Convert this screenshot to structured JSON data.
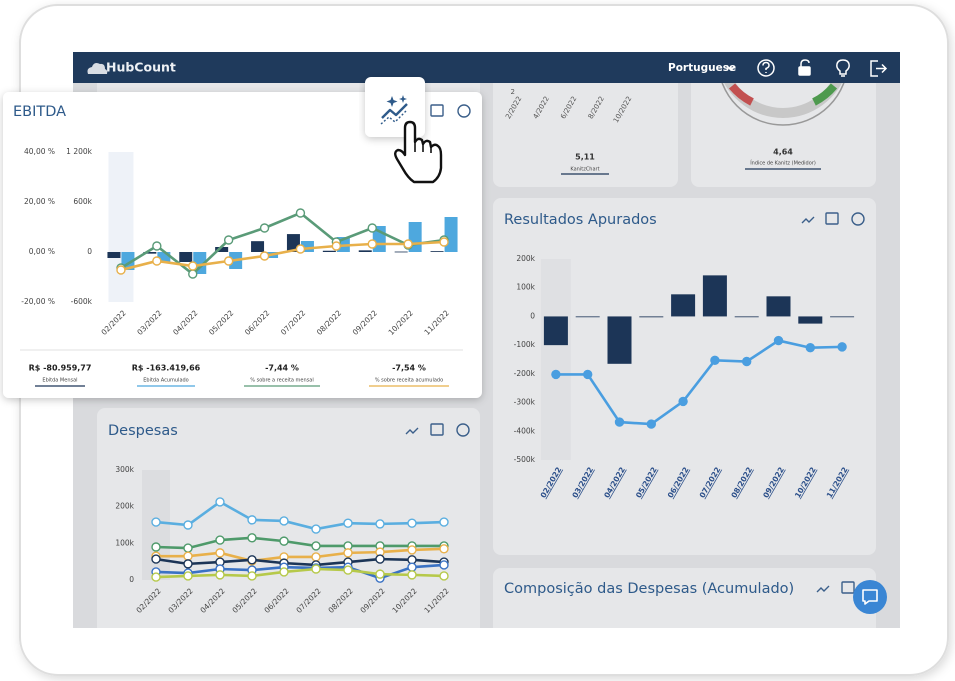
{
  "topbar": {
    "logo": "HubCount",
    "language": "Portuguese"
  },
  "kanitz_chart": {
    "y_label": "2",
    "x_labels": [
      "2/2022",
      "4/2022",
      "6/2022",
      "8/2022",
      "10/2022"
    ],
    "value": "5,11",
    "label": "KanitzChart"
  },
  "kanitz_gauge": {
    "value": "4,64",
    "label": "Índice de Kanitz (Medidor)"
  },
  "ebitda": {
    "type": "combo",
    "title": "EBITDA",
    "categories": [
      "02/2022",
      "03/2022",
      "04/2022",
      "05/2022",
      "06/2022",
      "07/2022",
      "08/2022",
      "09/2022",
      "10/2022",
      "11/2022"
    ],
    "series": [
      {
        "type": "bar",
        "axis": "y2",
        "color": "#1c3557",
        "values": [
          -72000,
          -20000,
          -120000,
          60000,
          130000,
          215000,
          15000,
          20000,
          5000,
          10000
        ]
      },
      {
        "type": "bar",
        "axis": "y2",
        "color": "#4ea8de",
        "values": [
          -216000,
          -120000,
          -264000,
          -204000,
          -72000,
          132000,
          180000,
          312000,
          360000,
          420000
        ]
      },
      {
        "type": "line",
        "color": "#5a9b78",
        "values": [
          -6.4,
          2.4,
          -8.8,
          4.8,
          9.6,
          15.6,
          4,
          9.6,
          2.8,
          4.8
        ]
      },
      {
        "type": "line",
        "color": "#e8b04a",
        "values": [
          -7.2,
          -3.6,
          -5.6,
          -3.6,
          -1.6,
          1.2,
          2.4,
          3.2,
          3.2,
          4
        ]
      }
    ],
    "ylim": [
      -20,
      40
    ],
    "yticks": [
      {
        "value": -20,
        "label": "-20,00 %"
      },
      {
        "value": 0,
        "label": "0,00 %"
      },
      {
        "value": 20,
        "label": "20,00 %"
      },
      {
        "value": 40,
        "label": "40,00 %"
      }
    ],
    "y2lim": [
      -600000,
      1200000
    ],
    "y2ticks": [
      {
        "value": -600000,
        "label": "-600k"
      },
      0,
      {
        "value": 600000,
        "label": "600k"
      },
      {
        "value": 1200000,
        "label": "1 200k"
      }
    ],
    "summary": [
      {
        "value": "R$ -80.959,77",
        "label": "Ebitda Mensal"
      },
      {
        "value": "R$ -163.419,66",
        "label": "Ebitda Acumulado"
      },
      {
        "value": "-7,44 %",
        "label": "% sobre a receita mensal"
      },
      {
        "value": "-7,54 %",
        "label": "% sobre receita acumulado"
      }
    ]
  },
  "resultados": {
    "type": "combo",
    "title": "Resultados Apurados",
    "categories": [
      "02/2022",
      "03/2022",
      "04/2022",
      "05/2022",
      "06/2022",
      "07/2022",
      "08/2022",
      "09/2022",
      "10/2022",
      "11/2022"
    ],
    "series": [
      {
        "type": "bar",
        "color": "#1c3557",
        "values": [
          -100000,
          0,
          -165000,
          -3000,
          77000,
          143000,
          0,
          70000,
          -25000,
          -2000
        ]
      },
      {
        "type": "line",
        "color": "#4a9ee0",
        "values": [
          -202000,
          -202000,
          -368000,
          -375000,
          -296000,
          -153000,
          -157000,
          -84000,
          -109000,
          -106000
        ]
      }
    ],
    "ylim": [
      -500000,
      200000
    ],
    "yticks": [
      {
        "value": -500000,
        "label": "-500k"
      },
      {
        "value": -400000,
        "label": "-400k"
      },
      {
        "value": -300000,
        "label": "-300k"
      },
      {
        "value": -200000,
        "label": "-200k"
      },
      {
        "value": -100000,
        "label": "-100k"
      },
      0,
      {
        "value": 100000,
        "label": "100k"
      },
      {
        "value": 200000,
        "label": "200k"
      }
    ]
  },
  "despesas": {
    "type": "line",
    "title": "Despesas",
    "categories": [
      "02/2022",
      "03/2022",
      "04/2022",
      "05/2022",
      "06/2022",
      "07/2022",
      "08/2022",
      "09/2022",
      "10/2022",
      "11/2022"
    ],
    "series": [
      {
        "color": "#5aaee0",
        "values": [
          158000,
          150000,
          213000,
          164000,
          161000,
          139000,
          155000,
          153000,
          155000,
          158000
        ]
      },
      {
        "color": "#4e9a6a",
        "values": [
          90000,
          87000,
          109000,
          115000,
          106000,
          93000,
          93000,
          93000,
          93000,
          93000
        ]
      },
      {
        "color": "#e8b04a",
        "values": [
          65000,
          65000,
          74000,
          52000,
          63000,
          63000,
          74000,
          76000,
          82000,
          85000
        ]
      },
      {
        "color": "#1c3557",
        "values": [
          57000,
          44000,
          49000,
          55000,
          46000,
          41000,
          49000,
          57000,
          55000,
          49000
        ]
      },
      {
        "color": "#3a72c4",
        "values": [
          22000,
          19000,
          30000,
          27000,
          35000,
          33000,
          35000,
          5000,
          35000,
          41000
        ]
      },
      {
        "color": "#b6c94a",
        "values": [
          8000,
          11000,
          14000,
          11000,
          22000,
          30000,
          27000,
          16000,
          14000,
          11000
        ]
      }
    ],
    "ylim": [
      0,
      300000
    ],
    "yticks": [
      0,
      {
        "value": 100000,
        "label": "100k"
      },
      {
        "value": 200000,
        "label": "200k"
      },
      {
        "value": 300000,
        "label": "300k"
      }
    ]
  },
  "composicao": {
    "title": "Composição das Despesas (Acumulado)"
  }
}
